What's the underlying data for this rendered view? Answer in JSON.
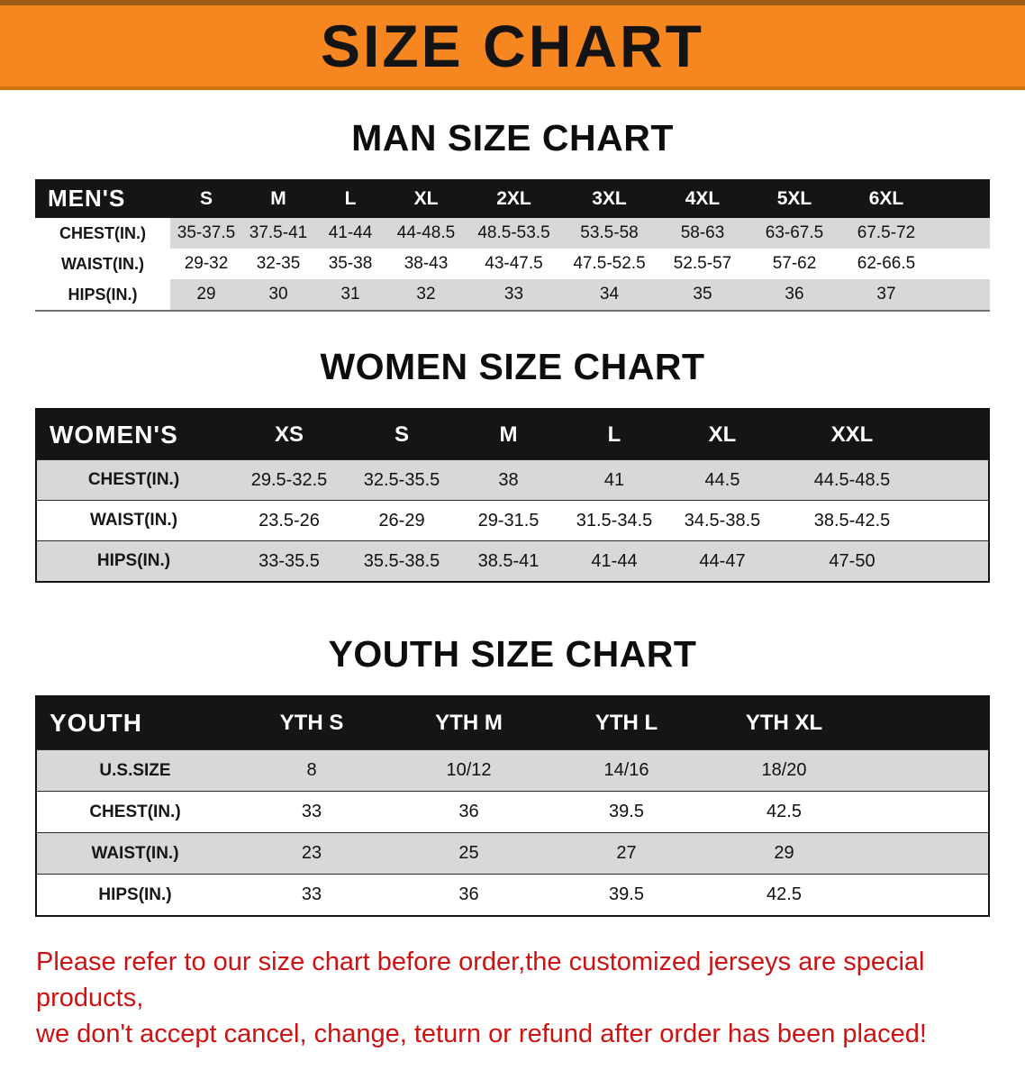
{
  "banner": {
    "title": "SIZE CHART"
  },
  "sections": [
    {
      "heading": "MAN SIZE CHART",
      "table_name": "mens-size-table",
      "header": [
        "MEN'S",
        "S",
        "M",
        "L",
        "XL",
        "2XL",
        "3XL",
        "4XL",
        "5XL",
        "6XL"
      ],
      "rows": [
        {
          "label": "CHEST(IN.)",
          "values": [
            "35-37.5",
            "37.5-41",
            "41-44",
            "44-48.5",
            "48.5-53.5",
            "53.5-58",
            "58-63",
            "63-67.5",
            "67.5-72"
          ]
        },
        {
          "label": "WAIST(IN.)",
          "values": [
            "29-32",
            "32-35",
            "35-38",
            "38-43",
            "43-47.5",
            "47.5-52.5",
            "52.5-57",
            "57-62",
            "62-66.5"
          ]
        },
        {
          "label": "HIPS(IN.)",
          "values": [
            "29",
            "30",
            "31",
            "32",
            "33",
            "34",
            "35",
            "36",
            "37"
          ]
        }
      ]
    },
    {
      "heading": "WOMEN SIZE CHART",
      "table_name": "womens-size-table",
      "header": [
        "WOMEN'S",
        "XS",
        "S",
        "M",
        "L",
        "XL",
        "XXL"
      ],
      "rows": [
        {
          "label": "CHEST(IN.)",
          "values": [
            "29.5-32.5",
            "32.5-35.5",
            "38",
            "41",
            "44.5",
            "44.5-48.5"
          ]
        },
        {
          "label": "WAIST(IN.)",
          "values": [
            "23.5-26",
            "26-29",
            "29-31.5",
            "31.5-34.5",
            "34.5-38.5",
            "38.5-42.5"
          ]
        },
        {
          "label": "HIPS(IN.)",
          "values": [
            "33-35.5",
            "35.5-38.5",
            "38.5-41",
            "41-44",
            "44-47",
            "47-50"
          ]
        }
      ]
    },
    {
      "heading": "YOUTH SIZE CHART",
      "table_name": "youth-size-table",
      "header": [
        "YOUTH",
        "YTH S",
        "YTH M",
        "YTH L",
        "YTH XL"
      ],
      "rows": [
        {
          "label": "U.S.SIZE",
          "values": [
            "8",
            "10/12",
            "14/16",
            "18/20"
          ]
        },
        {
          "label": "CHEST(IN.)",
          "values": [
            "33",
            "36",
            "39.5",
            "42.5"
          ]
        },
        {
          "label": "WAIST(IN.)",
          "values": [
            "23",
            "25",
            "27",
            "29"
          ]
        },
        {
          "label": "HIPS(IN.)",
          "values": [
            "33",
            "36",
            "39.5",
            "42.5"
          ]
        }
      ]
    }
  ],
  "disclaimer": {
    "line1": "Please refer to our size chart before order,the customized jerseys are special products,",
    "line2": "we don't accept cancel, change, teturn or refund after order has been placed!"
  },
  "colors": {
    "banner_bg": "#f6861f",
    "header_bg": "#151515",
    "row_alt_bg": "#d8d8d8",
    "disclaimer_red": "#cc1212"
  }
}
